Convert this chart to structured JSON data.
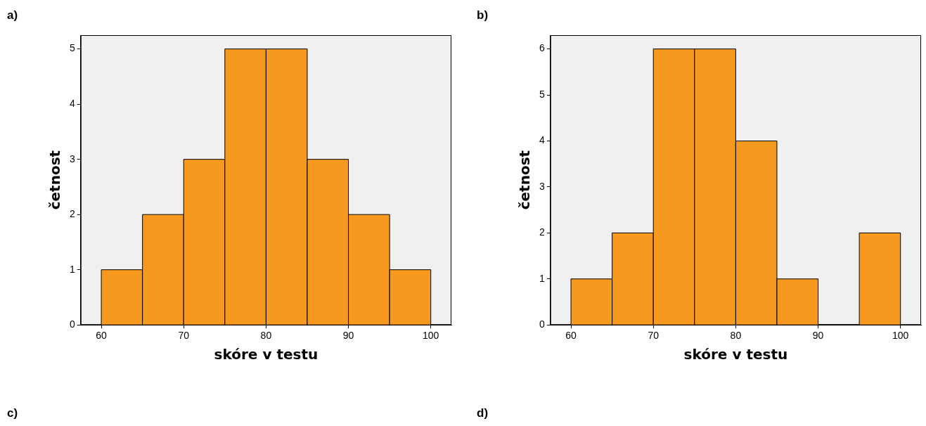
{
  "chart_data": [
    {
      "type": "histogram",
      "title": "a)",
      "xlabel": "skóre v testu",
      "ylabel": "četnost",
      "bins": [
        60,
        65,
        70,
        75,
        80,
        85,
        90,
        95,
        100
      ],
      "values": [
        1,
        2,
        3,
        5,
        5,
        3,
        2,
        1
      ],
      "color": "#f7991f",
      "xlim": [
        57.5,
        102.5
      ],
      "xticks": [
        60,
        70,
        80,
        90,
        100
      ],
      "ylim": [
        0,
        5.25
      ],
      "yticks": [
        0,
        1,
        2,
        3,
        4,
        5
      ],
      "grid": false,
      "legend": false,
      "annotations": [
        "c)"
      ]
    },
    {
      "type": "histogram",
      "title": "b)",
      "xlabel": "skóre v testu",
      "ylabel": "četnost",
      "bins": [
        60,
        65,
        70,
        75,
        80,
        85,
        90,
        95,
        100
      ],
      "values": [
        1,
        2,
        6,
        6,
        4,
        1,
        0,
        2
      ],
      "color": "#f7991f",
      "xlim": [
        57.5,
        102.5
      ],
      "xticks": [
        60,
        70,
        80,
        90,
        100
      ],
      "ylim": [
        0,
        6.3
      ],
      "yticks": [
        0,
        1,
        2,
        3,
        4,
        5,
        6
      ],
      "grid": false,
      "legend": false,
      "annotations": [
        "d)"
      ]
    }
  ]
}
